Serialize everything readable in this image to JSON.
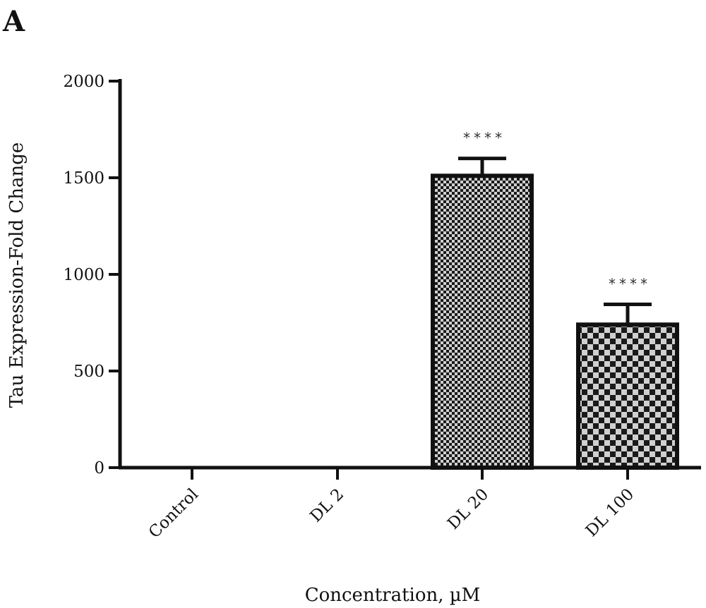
{
  "panel_label": "A",
  "chart_data": {
    "type": "bar",
    "categories": [
      "Control",
      "DL 2",
      "DL 20",
      "DL 100"
    ],
    "values": [
      0,
      0,
      1510,
      740
    ],
    "errors": [
      0,
      0,
      90,
      105
    ],
    "significance": [
      "",
      "",
      "****",
      "****"
    ],
    "xlabel": "Concentration, µM",
    "ylabel": "Tau Expression-Fold Change",
    "ylim": [
      0,
      2000
    ],
    "yticks": [
      0,
      500,
      1000,
      1500,
      2000
    ],
    "grid": false,
    "legend": "none",
    "bar_fill": "checkerboard",
    "colors": {
      "axis": "#111111",
      "bar_outline": "#111111",
      "check_dark": "#1a1a1a",
      "check_light": "#d0d0d0"
    }
  }
}
